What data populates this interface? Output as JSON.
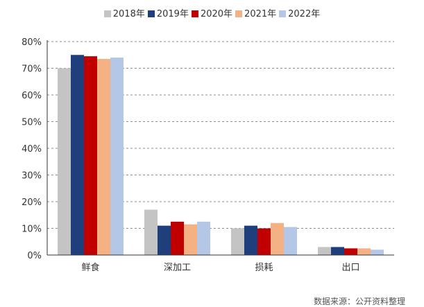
{
  "chart_data": {
    "type": "bar",
    "categories": [
      "鲜食",
      "深加工",
      "损耗",
      "出口"
    ],
    "series": [
      {
        "name": "2018年",
        "color": "#c4c4c4",
        "values": [
          70,
          17,
          10,
          3
        ]
      },
      {
        "name": "2019年",
        "color": "#1f3f7c",
        "values": [
          75,
          11,
          11,
          3
        ]
      },
      {
        "name": "2020年",
        "color": "#c00000",
        "values": [
          74.5,
          12.5,
          10,
          2.5
        ]
      },
      {
        "name": "2021年",
        "color": "#f4b183",
        "values": [
          73.5,
          11.5,
          12,
          2.5
        ]
      },
      {
        "name": "2022年",
        "color": "#b4c7e7",
        "values": [
          74,
          12.5,
          10.5,
          2
        ]
      }
    ],
    "yticks": [
      "0%",
      "10%",
      "20%",
      "30%",
      "40%",
      "50%",
      "60%",
      "70%",
      "80%"
    ],
    "ylim": [
      0,
      80
    ],
    "grid": true,
    "legend_position": "top"
  },
  "source_text": "数据来源：公开资料整理"
}
